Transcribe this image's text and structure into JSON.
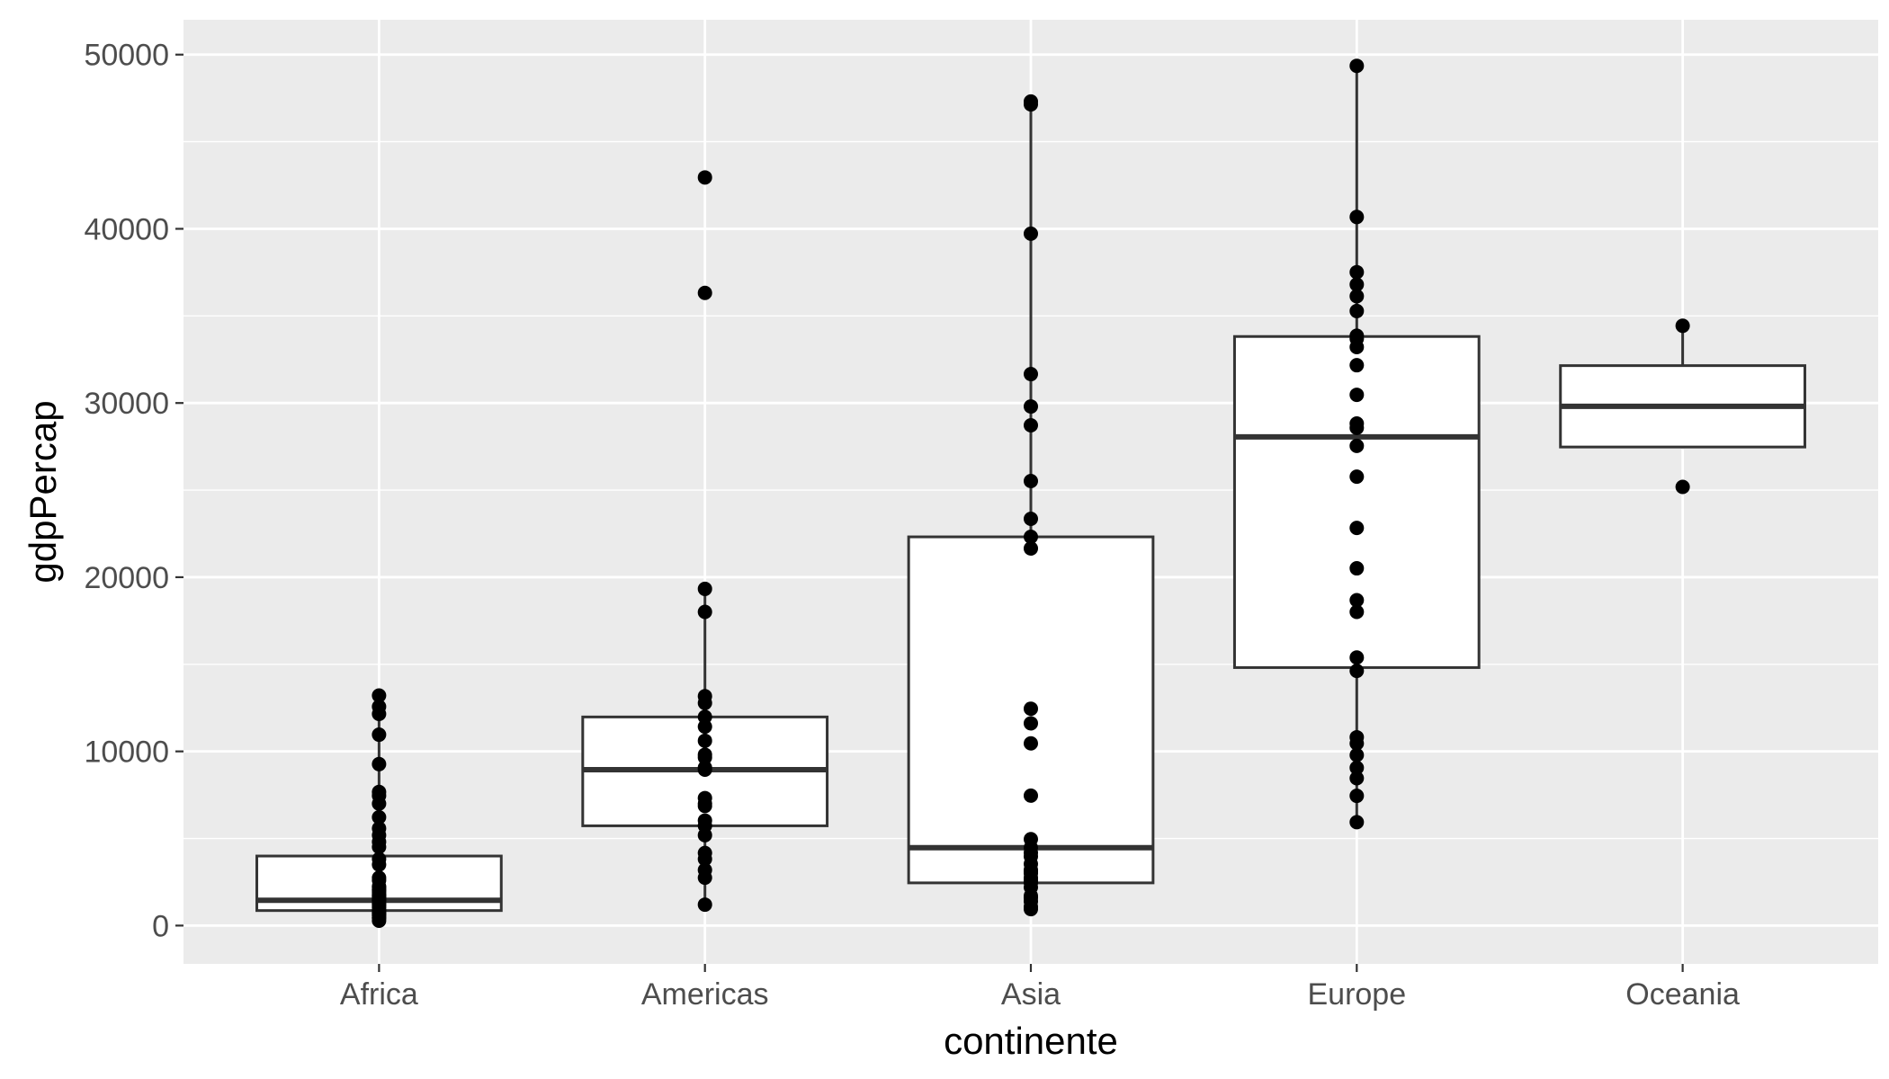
{
  "chart_data": {
    "type": "boxplot",
    "title": "",
    "xlabel": "continente",
    "ylabel": "gdpPercap",
    "ylim": [
      -2200,
      52000
    ],
    "yticks": [
      0,
      10000,
      20000,
      30000,
      40000,
      50000
    ],
    "grid": true,
    "legend": "none",
    "categories": [
      "Africa",
      "Americas",
      "Asia",
      "Europe",
      "Oceania"
    ],
    "boxes": [
      {
        "category": "Africa",
        "whisker_low": 277,
        "q1": 863,
        "median": 1452,
        "q3": 3993,
        "whisker_high": 13206
      },
      {
        "category": "Americas",
        "whisker_low": 1202,
        "q1": 5728,
        "median": 8948,
        "q3": 11977,
        "whisker_high": 19329
      },
      {
        "category": "Asia",
        "whisker_low": 944,
        "q1": 2452,
        "median": 4471,
        "q3": 22316,
        "whisker_high": 47307
      },
      {
        "category": "Europe",
        "whisker_low": 5937,
        "q1": 14812,
        "median": 28054,
        "q3": 33818,
        "whisker_high": 49357
      },
      {
        "category": "Oceania",
        "whisker_low": 27398,
        "q1": 27474,
        "median": 29810,
        "q3": 32146,
        "whisker_high": 34435
      }
    ],
    "points": [
      {
        "category": "Africa",
        "values": [
          277,
          420,
          470,
          580,
          620,
          710,
          760,
          860,
          890,
          1040,
          1110,
          1210,
          1270,
          1440,
          1460,
          1540,
          1600,
          1700,
          1710,
          1800,
          1910,
          2010,
          2080,
          2200,
          2250,
          2600,
          2750,
          3500,
          3820,
          4510,
          4810,
          5190,
          5580,
          6220,
          7000,
          7460,
          7670,
          9270,
          10960,
          12150,
          12570,
          13206
        ]
      },
      {
        "category": "Americas",
        "values": [
          1202,
          2750,
          3190,
          3820,
          4170,
          5190,
          5730,
          6030,
          6870,
          7010,
          7320,
          8950,
          9070,
          9650,
          9810,
          10610,
          11420,
          11980,
          12780,
          13170,
          18010,
          19330,
          36320,
          42950
        ]
      },
      {
        "category": "Asia",
        "values": [
          944,
          1090,
          1390,
          1590,
          1710,
          2200,
          2450,
          2600,
          2750,
          3000,
          3100,
          3190,
          3540,
          3970,
          4180,
          4470,
          4960,
          7460,
          10460,
          11610,
          12450,
          21650,
          22320,
          23350,
          25520,
          28720,
          29800,
          31660,
          39720,
          47140,
          47310
        ]
      },
      {
        "category": "Europe",
        "values": [
          5937,
          7450,
          8460,
          9060,
          9790,
          10460,
          10810,
          14620,
          15390,
          18010,
          18680,
          20510,
          22830,
          25770,
          27540,
          28570,
          28820,
          30470,
          32170,
          33210,
          33690,
          33860,
          35280,
          36130,
          36800,
          37510,
          40680,
          49357
        ]
      },
      {
        "category": "Oceania",
        "values": [
          25185,
          34435
        ]
      }
    ]
  }
}
